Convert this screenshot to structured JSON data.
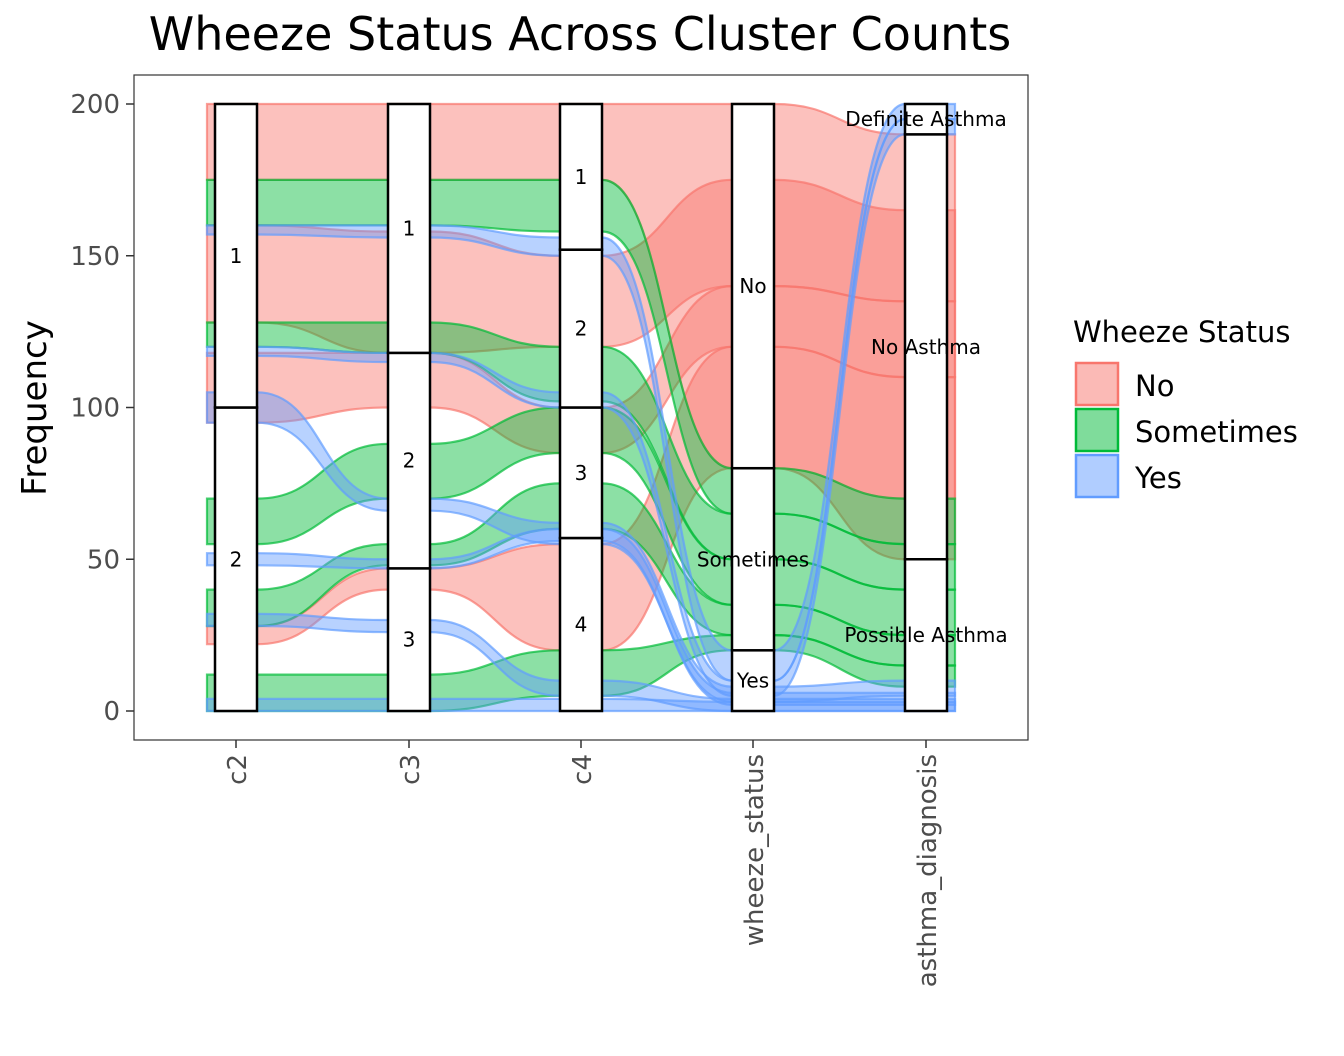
{
  "chart_data": {
    "type": "alluvial",
    "title": "Wheeze Status Across Cluster Counts",
    "xlabel": "",
    "ylabel": "Frequency",
    "ylim": [
      0,
      200
    ],
    "y_ticks": [
      0,
      50,
      100,
      150,
      200
    ],
    "axes": [
      "c2",
      "c3",
      "c4",
      "wheeze_status",
      "asthma_diagnosis"
    ],
    "strata": [
      {
        "axis": "c2",
        "segments": [
          {
            "label": "2",
            "from": 0,
            "to": 100
          },
          {
            "label": "1",
            "from": 100,
            "to": 200
          }
        ]
      },
      {
        "axis": "c3",
        "segments": [
          {
            "label": "3",
            "from": 0,
            "to": 47
          },
          {
            "label": "2",
            "from": 47,
            "to": 118
          },
          {
            "label": "1",
            "from": 118,
            "to": 200
          }
        ]
      },
      {
        "axis": "c4",
        "segments": [
          {
            "label": "4",
            "from": 0,
            "to": 57
          },
          {
            "label": "3",
            "from": 57,
            "to": 100
          },
          {
            "label": "2",
            "from": 100,
            "to": 152
          },
          {
            "label": "1",
            "from": 152,
            "to": 200
          }
        ]
      },
      {
        "axis": "wheeze_status",
        "segments": [
          {
            "label": "Yes",
            "from": 0,
            "to": 20
          },
          {
            "label": "Sometimes",
            "from": 20,
            "to": 80
          },
          {
            "label": "No",
            "from": 80,
            "to": 200
          }
        ]
      },
      {
        "axis": "asthma_diagnosis",
        "segments": [
          {
            "label": "Possible Asthma",
            "from": 0,
            "to": 50
          },
          {
            "label": "No Asthma",
            "from": 50,
            "to": 190
          },
          {
            "label": "Definite Asthma",
            "from": 190,
            "to": 200
          }
        ]
      }
    ],
    "fill_variable": "wheeze_status",
    "flows": [
      {
        "status": "No",
        "values": [
          [
            200,
            175
          ],
          [
            200,
            175
          ],
          [
            200,
            175
          ],
          [
            200,
            80
          ],
          [
            190,
            50
          ]
        ]
      },
      {
        "status": "No",
        "values": [
          [
            160,
            128
          ],
          [
            158,
            118
          ],
          [
            150,
            120
          ],
          [
            175,
            140
          ],
          [
            165,
            135
          ]
        ]
      },
      {
        "status": "No",
        "values": [
          [
            118,
            95
          ],
          [
            118,
            100
          ],
          [
            100,
            85
          ],
          [
            140,
            120
          ],
          [
            135,
            110
          ]
        ]
      },
      {
        "status": "No",
        "values": [
          [
            28,
            22
          ],
          [
            47,
            40
          ],
          [
            55,
            20
          ],
          [
            120,
            80
          ],
          [
            110,
            70
          ]
        ]
      },
      {
        "status": "Sometimes",
        "values": [
          [
            175,
            160
          ],
          [
            175,
            160
          ],
          [
            175,
            158
          ],
          [
            80,
            65
          ],
          [
            70,
            55
          ]
        ]
      },
      {
        "status": "Sometimes",
        "values": [
          [
            128,
            120
          ],
          [
            128,
            118
          ],
          [
            120,
            102
          ],
          [
            65,
            50
          ],
          [
            55,
            40
          ]
        ]
      },
      {
        "status": "Sometimes",
        "values": [
          [
            70,
            55
          ],
          [
            88,
            70
          ],
          [
            100,
            85
          ],
          [
            50,
            35
          ],
          [
            40,
            25
          ]
        ]
      },
      {
        "status": "Sometimes",
        "values": [
          [
            40,
            28
          ],
          [
            55,
            48
          ],
          [
            75,
            60
          ],
          [
            35,
            25
          ],
          [
            25,
            15
          ]
        ]
      },
      {
        "status": "Sometimes",
        "values": [
          [
            12,
            0
          ],
          [
            12,
            0
          ],
          [
            20,
            5
          ],
          [
            25,
            20
          ],
          [
            15,
            8
          ]
        ]
      },
      {
        "status": "Yes",
        "values": [
          [
            160,
            157
          ],
          [
            160,
            156
          ],
          [
            156,
            150
          ],
          [
            20,
            10
          ],
          [
            200,
            195
          ]
        ]
      },
      {
        "status": "Yes",
        "values": [
          [
            120,
            117
          ],
          [
            118,
            115
          ],
          [
            105,
            100
          ],
          [
            10,
            5
          ],
          [
            195,
            190
          ]
        ]
      },
      {
        "status": "Yes",
        "values": [
          [
            105,
            95
          ],
          [
            70,
            66
          ],
          [
            62,
            55
          ],
          [
            8,
            3
          ],
          [
            10,
            5
          ]
        ]
      },
      {
        "status": "Yes",
        "values": [
          [
            52,
            48
          ],
          [
            50,
            47
          ],
          [
            60,
            56
          ],
          [
            6,
            2
          ],
          [
            6,
            2
          ]
        ]
      },
      {
        "status": "Yes",
        "values": [
          [
            32,
            28
          ],
          [
            30,
            26
          ],
          [
            10,
            5
          ],
          [
            4,
            0
          ],
          [
            4,
            0
          ]
        ]
      },
      {
        "status": "Yes",
        "values": [
          [
            4,
            0
          ],
          [
            4,
            0
          ],
          [
            4,
            0
          ],
          [
            3,
            0
          ],
          [
            3,
            0
          ]
        ]
      }
    ],
    "legend": {
      "title": "Wheeze Status",
      "placement": "right",
      "items": [
        {
          "label": "No",
          "fill": "#f8766d",
          "stroke": "#f8766d"
        },
        {
          "label": "Sometimes",
          "fill": "#00ba38",
          "stroke": "#00ba38"
        },
        {
          "label": "Yes",
          "fill": "#619cff",
          "stroke": "#619cff"
        }
      ]
    },
    "colors": {
      "No": "#f8766d",
      "Sometimes": "#00ba38",
      "Yes": "#619cff"
    },
    "grid": false
  }
}
